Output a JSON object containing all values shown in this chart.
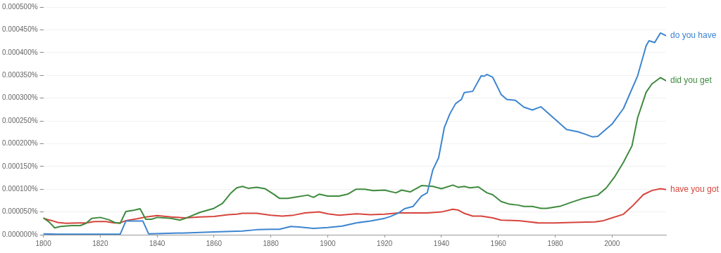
{
  "chart_data": {
    "type": "line",
    "xlim": [
      1800,
      2019
    ],
    "xticks": [
      1800,
      1820,
      1840,
      1860,
      1880,
      1900,
      1920,
      1940,
      1960,
      1980,
      2000
    ],
    "ylim": [
      0,
      0.0005
    ],
    "yticks": [
      {
        "value": 0,
        "label": "0.000000%"
      },
      {
        "value": 5e-05,
        "label": "0.000050%"
      },
      {
        "value": 0.0001,
        "label": "0.000100%"
      },
      {
        "value": 0.00015,
        "label": "0.000150%"
      },
      {
        "value": 0.0002,
        "label": "0.000200%"
      },
      {
        "value": 0.00025,
        "label": "0.000250%"
      },
      {
        "value": 0.0003,
        "label": "0.000300%"
      },
      {
        "value": 0.00035,
        "label": "0.000350%"
      },
      {
        "value": 0.0004,
        "label": "0.000400%"
      },
      {
        "value": 0.00045,
        "label": "0.000450%"
      },
      {
        "value": 0.0005,
        "label": "0.000500%"
      }
    ],
    "grid": "y",
    "legend": false,
    "series": [
      {
        "name": "do you have",
        "color": "#3d85d0",
        "x": [
          1800,
          1805,
          1827,
          1829,
          1835,
          1837,
          1850,
          1860,
          1870,
          1875,
          1880,
          1883,
          1887,
          1890,
          1895,
          1900,
          1905,
          1910,
          1915,
          1920,
          1922,
          1925,
          1927,
          1930,
          1933,
          1935,
          1937,
          1939,
          1941,
          1943,
          1945,
          1947,
          1948,
          1951,
          1954,
          1955,
          1956,
          1958,
          1961,
          1963,
          1966,
          1969,
          1972,
          1975,
          1979,
          1984,
          1988,
          1990,
          1993,
          1995,
          2000,
          2004,
          2009,
          2012,
          2013,
          2015,
          2017,
          2019
        ],
        "values": [
          2e-06,
          1e-06,
          1e-06,
          3e-05,
          3e-05,
          2e-06,
          4e-06,
          6e-06,
          8e-06,
          1.1e-05,
          1.2e-05,
          1.2e-05,
          1.8e-05,
          1.7e-05,
          1.4e-05,
          1.6e-05,
          1.9e-05,
          2.6e-05,
          3e-05,
          3.6e-05,
          4e-05,
          4.8e-05,
          5.7e-05,
          6.2e-05,
          8.5e-05,
          9.2e-05,
          0.000143,
          0.000169,
          0.000235,
          0.000266,
          0.000288,
          0.000297,
          0.000312,
          0.000315,
          0.000349,
          0.000348,
          0.000352,
          0.000346,
          0.000308,
          0.000297,
          0.000295,
          0.00028,
          0.000274,
          0.000281,
          0.000259,
          0.000231,
          0.000226,
          0.000222,
          0.000215,
          0.000216,
          0.000243,
          0.000277,
          0.000349,
          0.000415,
          0.000426,
          0.000422,
          0.000443,
          0.000437
        ]
      },
      {
        "name": "did you get",
        "color": "#3e8a3e",
        "x": [
          1800,
          1802,
          1804,
          1806,
          1810,
          1813,
          1815,
          1817,
          1820,
          1823,
          1825,
          1827,
          1829,
          1832,
          1834,
          1836,
          1838,
          1840,
          1845,
          1848,
          1850,
          1855,
          1860,
          1863,
          1866,
          1868,
          1870,
          1872,
          1875,
          1878,
          1881,
          1883,
          1886,
          1889,
          1893,
          1895,
          1897,
          1900,
          1904,
          1907,
          1910,
          1913,
          1916,
          1920,
          1924,
          1926,
          1929,
          1933,
          1937,
          1940,
          1944,
          1946,
          1948,
          1950,
          1953,
          1956,
          1958,
          1961,
          1964,
          1967,
          1969,
          1972,
          1975,
          1977,
          1982,
          1986,
          1990,
          1995,
          1998,
          2001,
          2004,
          2007,
          2009,
          2012,
          2014,
          2017,
          2019
        ],
        "values": [
          3.7e-05,
          2.8e-05,
          1.5e-05,
          1.8e-05,
          2e-05,
          2e-05,
          2.5e-05,
          3.6e-05,
          3.8e-05,
          3.3e-05,
          2.7e-05,
          2.5e-05,
          5.1e-05,
          5.4e-05,
          5.7e-05,
          3.4e-05,
          3.4e-05,
          3.8e-05,
          3.6e-05,
          3.2e-05,
          3.6e-05,
          4.9e-05,
          5.8e-05,
          6.9e-05,
          9.2e-05,
          0.000103,
          0.000106,
          0.000102,
          0.000104,
          0.000101,
          8.9e-05,
          8e-05,
          8e-05,
          8.3e-05,
          8.7e-05,
          8.2e-05,
          8.9e-05,
          8.5e-05,
          8.5e-05,
          8.9e-05,
          0.0001,
          0.0001,
          9.7e-05,
          9.8e-05,
          9.2e-05,
          9.8e-05,
          9.4e-05,
          0.000108,
          0.000106,
          0.000101,
          0.000109,
          0.000104,
          0.000106,
          0.000103,
          0.000105,
          9.2e-05,
          8.8e-05,
          7.3e-05,
          6.7e-05,
          6.5e-05,
          6.2e-05,
          6.2e-05,
          5.8e-05,
          5.8e-05,
          6.3e-05,
          7.2e-05,
          8e-05,
          8.7e-05,
          0.000103,
          0.000128,
          0.000159,
          0.000195,
          0.000257,
          0.000313,
          0.000331,
          0.000345,
          0.000338
        ]
      },
      {
        "name": "have you got",
        "color": "#d6453d",
        "x": [
          1800,
          1803,
          1805,
          1808,
          1812,
          1815,
          1818,
          1822,
          1825,
          1827,
          1829,
          1833,
          1836,
          1840,
          1845,
          1850,
          1855,
          1860,
          1865,
          1868,
          1870,
          1875,
          1880,
          1884,
          1888,
          1892,
          1897,
          1900,
          1904,
          1910,
          1915,
          1920,
          1925,
          1930,
          1935,
          1940,
          1944,
          1946,
          1948,
          1951,
          1954,
          1958,
          1961,
          1967,
          1970,
          1974,
          1980,
          1986,
          1994,
          1997,
          2000,
          2004,
          2007,
          2011,
          2014,
          2017,
          2019
        ],
        "values": [
          3.6e-05,
          3.1e-05,
          2.7e-05,
          2.5e-05,
          2.6e-05,
          2.6e-05,
          2.9e-05,
          2.9e-05,
          2.6e-05,
          2.6e-05,
          3.1e-05,
          3.5e-05,
          3.9e-05,
          4.2e-05,
          3.9e-05,
          3.7e-05,
          3.9e-05,
          4e-05,
          4.4e-05,
          4.5e-05,
          4.7e-05,
          4.7e-05,
          4.3e-05,
          4.1e-05,
          4.3e-05,
          4.8e-05,
          5e-05,
          4.6e-05,
          4.3e-05,
          4.6e-05,
          4.4e-05,
          4.5e-05,
          4.8e-05,
          4.8e-05,
          4.8e-05,
          5e-05,
          5.6e-05,
          5.4e-05,
          4.7e-05,
          4.1e-05,
          4.1e-05,
          3.7e-05,
          3.2e-05,
          3.1e-05,
          2.9e-05,
          2.6e-05,
          2.6e-05,
          2.7e-05,
          2.8e-05,
          3.1e-05,
          3.7e-05,
          4.5e-05,
          6.2e-05,
          8.8e-05,
          9.7e-05,
          0.000101,
          9.9e-05
        ]
      }
    ]
  }
}
